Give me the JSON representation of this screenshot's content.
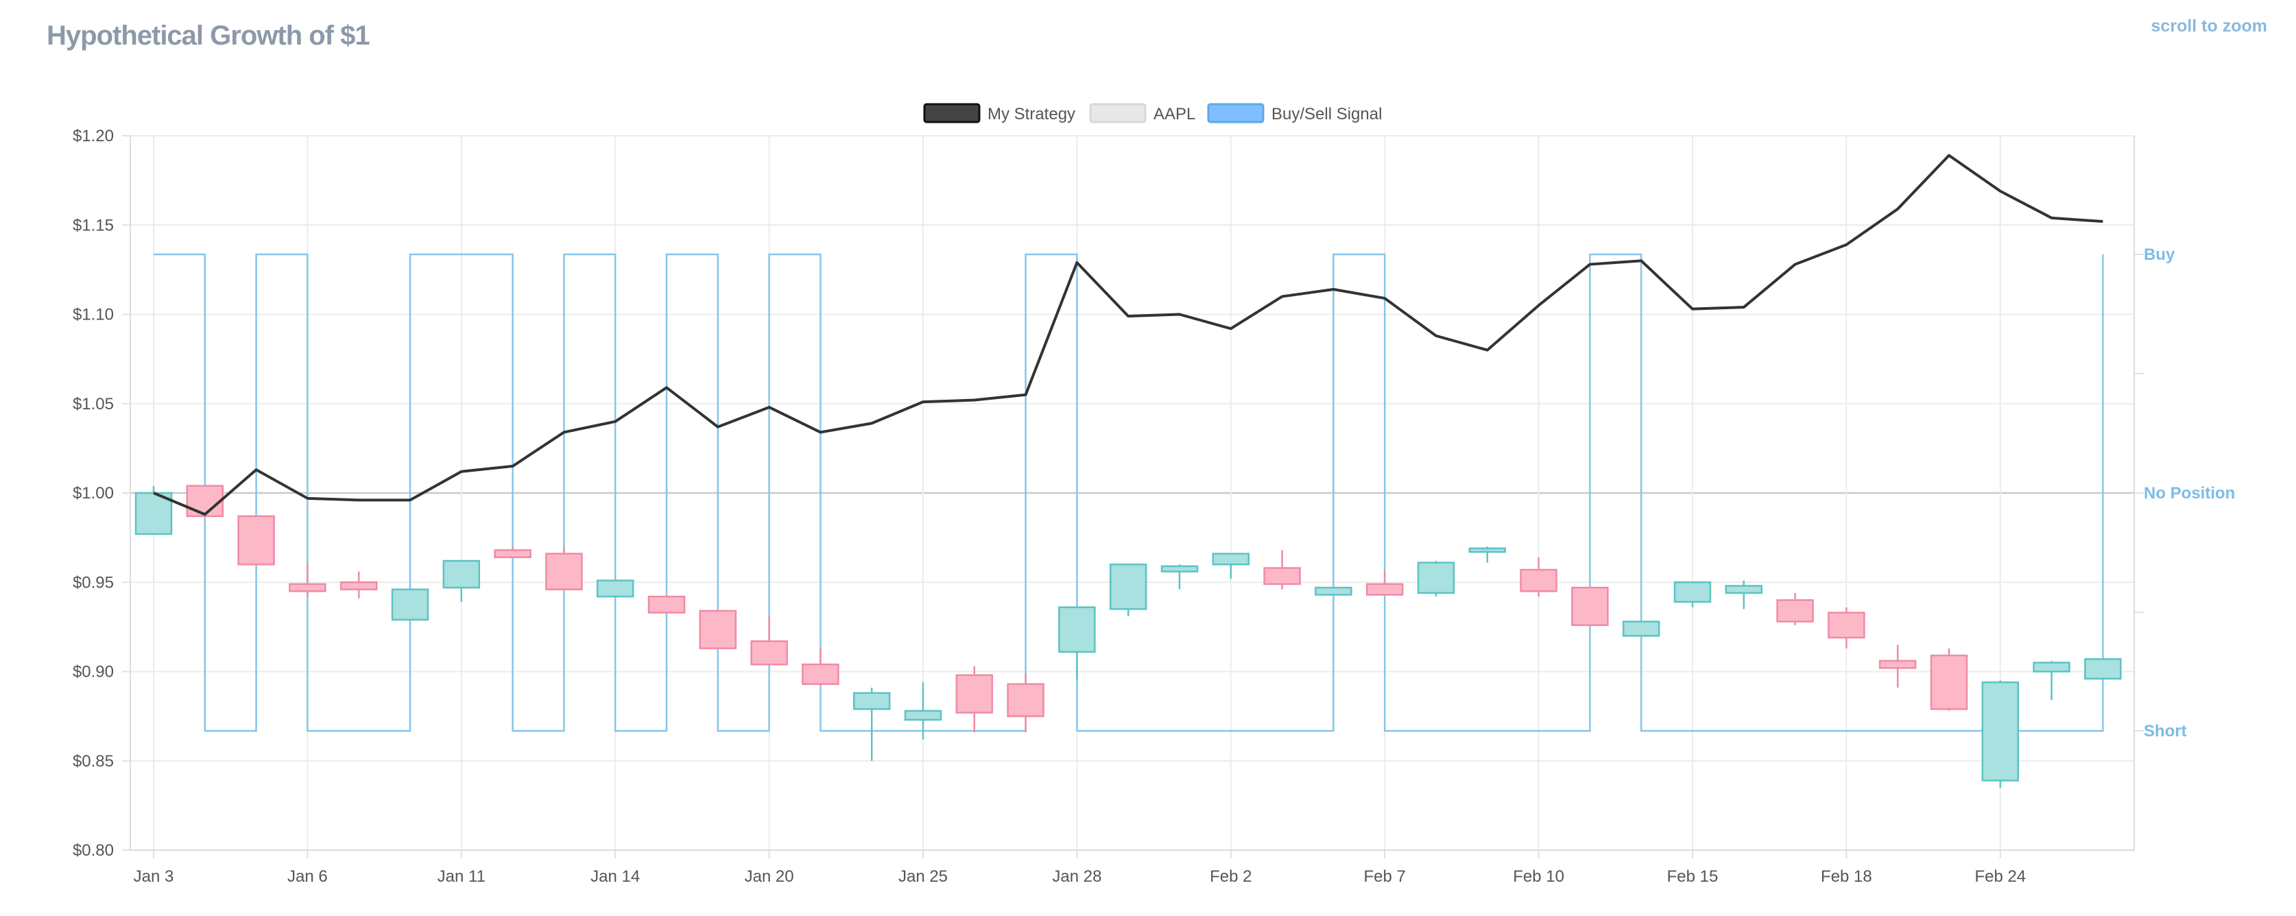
{
  "header": {
    "title": "Hypothetical Growth of $1",
    "zoom_hint": "scroll to zoom"
  },
  "chart_data": {
    "type": "line",
    "title": "Hypothetical Growth of $1",
    "legend": [
      {
        "name": "My Strategy",
        "color": "#444444"
      },
      {
        "name": "AAPL",
        "color": "#e8e8e8"
      },
      {
        "name": "Buy/Sell Signal",
        "color": "#7fbfff"
      }
    ],
    "ylim": [
      0.8,
      1.2
    ],
    "y_ticks": [
      0.8,
      0.85,
      0.9,
      0.95,
      1.0,
      1.05,
      1.1,
      1.15,
      1.2
    ],
    "y_tick_labels": [
      "$0.80",
      "$0.85",
      "$0.90",
      "$0.95",
      "$1.00",
      "$1.05",
      "$1.10",
      "$1.15",
      "$1.20"
    ],
    "x_labels": [
      {
        "index": 0,
        "label": "Jan 3"
      },
      {
        "index": 3,
        "label": "Jan 6"
      },
      {
        "index": 6,
        "label": "Jan 11"
      },
      {
        "index": 9,
        "label": "Jan 14"
      },
      {
        "index": 12,
        "label": "Jan 20"
      },
      {
        "index": 15,
        "label": "Jan 25"
      },
      {
        "index": 18,
        "label": "Jan 28"
      },
      {
        "index": 21,
        "label": "Feb 2"
      },
      {
        "index": 24,
        "label": "Feb 7"
      },
      {
        "index": 27,
        "label": "Feb 10"
      },
      {
        "index": 30,
        "label": "Feb 15"
      },
      {
        "index": 33,
        "label": "Feb 18"
      },
      {
        "index": 36,
        "label": "Feb 24"
      }
    ],
    "signal_labels": [
      "Buy",
      "No Position",
      "Short"
    ],
    "strategy": [
      1.0,
      0.988,
      1.013,
      0.997,
      0.996,
      0.996,
      1.012,
      1.015,
      1.034,
      1.04,
      1.059,
      1.037,
      1.048,
      1.034,
      1.039,
      1.051,
      1.052,
      1.055,
      1.129,
      1.099,
      1.1,
      1.092,
      1.11,
      1.114,
      1.109,
      1.088,
      1.08,
      1.105,
      1.128,
      1.13,
      1.103,
      1.104,
      1.128,
      1.139,
      1.159,
      1.189,
      1.169,
      1.154,
      1.152
    ],
    "signal": [
      1,
      -1,
      1,
      -1,
      -1,
      1,
      1,
      -1,
      1,
      -1,
      1,
      -1,
      1,
      -1,
      -1,
      -1,
      -1,
      1,
      -1,
      -1,
      -1,
      -1,
      -1,
      1,
      -1,
      -1,
      -1,
      -1,
      1,
      -1,
      -1,
      -1,
      -1,
      -1,
      -1,
      -1,
      -1,
      -1,
      1
    ],
    "aapl_candles": [
      {
        "o": 0.977,
        "h": 1.004,
        "l": 0.977,
        "c": 1.0
      },
      {
        "o": 1.004,
        "h": 1.004,
        "l": 0.987,
        "c": 0.987
      },
      {
        "o": 0.987,
        "h": 0.987,
        "l": 0.96,
        "c": 0.96
      },
      {
        "o": 0.949,
        "h": 0.961,
        "l": 0.942,
        "c": 0.945
      },
      {
        "o": 0.95,
        "h": 0.956,
        "l": 0.941,
        "c": 0.946
      },
      {
        "o": 0.929,
        "h": 0.946,
        "l": 0.929,
        "c": 0.946
      },
      {
        "o": 0.947,
        "h": 0.962,
        "l": 0.939,
        "c": 0.962
      },
      {
        "o": 0.968,
        "h": 0.97,
        "l": 0.964,
        "c": 0.964
      },
      {
        "o": 0.966,
        "h": 0.97,
        "l": 0.946,
        "c": 0.946
      },
      {
        "o": 0.942,
        "h": 0.951,
        "l": 0.942,
        "c": 0.951
      },
      {
        "o": 0.942,
        "h": 0.942,
        "l": 0.933,
        "c": 0.933
      },
      {
        "o": 0.934,
        "h": 0.934,
        "l": 0.913,
        "c": 0.913
      },
      {
        "o": 0.917,
        "h": 0.931,
        "l": 0.904,
        "c": 0.904
      },
      {
        "o": 0.904,
        "h": 0.913,
        "l": 0.893,
        "c": 0.893
      },
      {
        "o": 0.879,
        "h": 0.891,
        "l": 0.85,
        "c": 0.888
      },
      {
        "o": 0.873,
        "h": 0.894,
        "l": 0.862,
        "c": 0.878
      },
      {
        "o": 0.898,
        "h": 0.903,
        "l": 0.866,
        "c": 0.877
      },
      {
        "o": 0.893,
        "h": 0.899,
        "l": 0.866,
        "c": 0.875
      },
      {
        "o": 0.911,
        "h": 0.936,
        "l": 0.895,
        "c": 0.936
      },
      {
        "o": 0.935,
        "h": 0.96,
        "l": 0.931,
        "c": 0.96
      },
      {
        "o": 0.956,
        "h": 0.96,
        "l": 0.946,
        "c": 0.959
      },
      {
        "o": 0.96,
        "h": 0.966,
        "l": 0.952,
        "c": 0.966
      },
      {
        "o": 0.958,
        "h": 0.968,
        "l": 0.946,
        "c": 0.949
      },
      {
        "o": 0.943,
        "h": 0.947,
        "l": 0.943,
        "c": 0.947
      },
      {
        "o": 0.949,
        "h": 0.956,
        "l": 0.943,
        "c": 0.943
      },
      {
        "o": 0.944,
        "h": 0.962,
        "l": 0.942,
        "c": 0.961
      },
      {
        "o": 0.967,
        "h": 0.97,
        "l": 0.961,
        "c": 0.969
      },
      {
        "o": 0.957,
        "h": 0.964,
        "l": 0.942,
        "c": 0.945
      },
      {
        "o": 0.947,
        "h": 0.947,
        "l": 0.926,
        "c": 0.926
      },
      {
        "o": 0.92,
        "h": 0.928,
        "l": 0.92,
        "c": 0.928
      },
      {
        "o": 0.939,
        "h": 0.95,
        "l": 0.936,
        "c": 0.95
      },
      {
        "o": 0.944,
        "h": 0.951,
        "l": 0.935,
        "c": 0.948
      },
      {
        "o": 0.94,
        "h": 0.944,
        "l": 0.926,
        "c": 0.928
      },
      {
        "o": 0.933,
        "h": 0.936,
        "l": 0.913,
        "c": 0.919
      },
      {
        "o": 0.906,
        "h": 0.915,
        "l": 0.891,
        "c": 0.902
      },
      {
        "o": 0.909,
        "h": 0.913,
        "l": 0.878,
        "c": 0.879
      },
      {
        "o": 0.839,
        "h": 0.895,
        "l": 0.835,
        "c": 0.894
      },
      {
        "o": 0.9,
        "h": 0.906,
        "l": 0.884,
        "c": 0.905
      },
      {
        "o": 0.896,
        "h": 0.907,
        "l": 0.896,
        "c": 0.907
      }
    ]
  }
}
